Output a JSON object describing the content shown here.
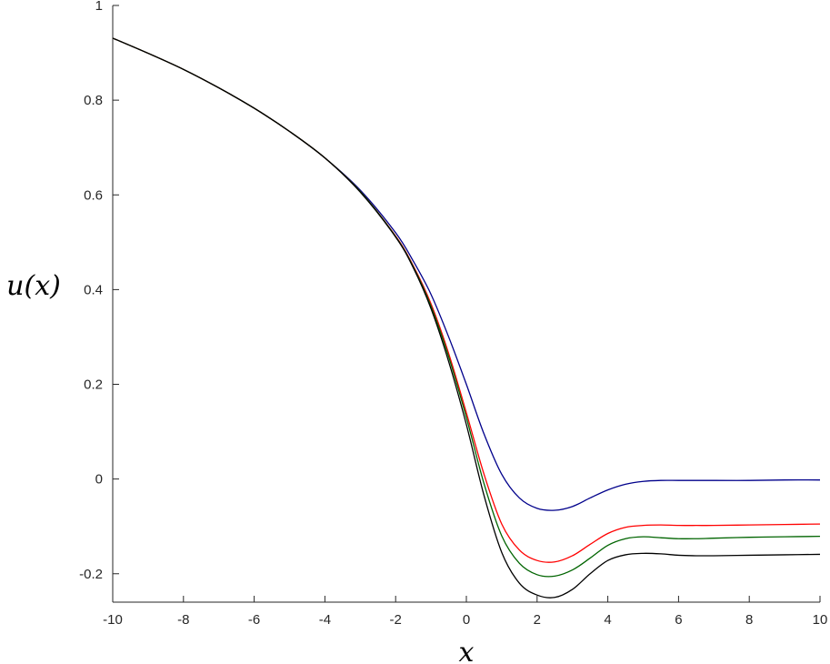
{
  "chart_data": {
    "type": "line",
    "title": "",
    "xlabel": "x",
    "ylabel": "u(x)",
    "xlim": [
      -10,
      10
    ],
    "ylim": [
      -0.26,
      1.0
    ],
    "xticks": [
      -10,
      -8,
      -6,
      -4,
      -2,
      0,
      2,
      4,
      6,
      8,
      10
    ],
    "xtick_labels": [
      "-10",
      "-8",
      "-6",
      "-4",
      "-2",
      "0",
      "2",
      "4",
      "6",
      "8",
      "10"
    ],
    "yticks": [
      -0.2,
      0,
      0.2,
      0.4,
      0.6,
      0.8,
      1.0
    ],
    "ytick_labels": [
      "-0.2",
      "0",
      "0.2",
      "0.4",
      "0.6",
      "0.8",
      "1"
    ],
    "grid": false,
    "legend": "none",
    "x": [
      -10,
      -9,
      -8,
      -7,
      -6,
      -5,
      -4,
      -3,
      -2,
      -1.5,
      -1,
      -0.5,
      0,
      0.5,
      1,
      1.5,
      2,
      2.5,
      3,
      3.5,
      4,
      4.5,
      5,
      5.5,
      6,
      6.5,
      7,
      8,
      9,
      10
    ],
    "series": [
      {
        "color": "#00008b",
        "values": [
          0.931,
          0.899,
          0.865,
          0.826,
          0.783,
          0.734,
          0.678,
          0.61,
          0.52,
          0.46,
          0.39,
          0.3,
          0.2,
          0.095,
          0.01,
          -0.04,
          -0.062,
          -0.066,
          -0.058,
          -0.04,
          -0.023,
          -0.011,
          -0.005,
          -0.003,
          -0.003,
          -0.003,
          -0.003,
          -0.003,
          -0.002,
          -0.002
        ]
      },
      {
        "color": "#ff0000",
        "values": [
          0.931,
          0.899,
          0.865,
          0.826,
          0.783,
          0.734,
          0.678,
          0.607,
          0.513,
          0.45,
          0.37,
          0.265,
          0.14,
          0.01,
          -0.095,
          -0.15,
          -0.172,
          -0.175,
          -0.162,
          -0.138,
          -0.115,
          -0.102,
          -0.098,
          -0.097,
          -0.098,
          -0.098,
          -0.098,
          -0.097,
          -0.096,
          -0.095
        ]
      },
      {
        "color": "#006400",
        "values": [
          0.931,
          0.899,
          0.865,
          0.826,
          0.783,
          0.734,
          0.678,
          0.607,
          0.512,
          0.448,
          0.365,
          0.258,
          0.13,
          -0.01,
          -0.12,
          -0.178,
          -0.202,
          -0.205,
          -0.192,
          -0.167,
          -0.14,
          -0.126,
          -0.122,
          -0.124,
          -0.126,
          -0.126,
          -0.125,
          -0.123,
          -0.122,
          -0.121
        ]
      },
      {
        "color": "#000000",
        "values": [
          0.931,
          0.899,
          0.865,
          0.826,
          0.783,
          0.734,
          0.678,
          0.606,
          0.511,
          0.446,
          0.36,
          0.248,
          0.115,
          -0.035,
          -0.155,
          -0.22,
          -0.245,
          -0.25,
          -0.233,
          -0.2,
          -0.172,
          -0.16,
          -0.157,
          -0.158,
          -0.161,
          -0.162,
          -0.162,
          -0.161,
          -0.16,
          -0.159
        ]
      }
    ]
  }
}
